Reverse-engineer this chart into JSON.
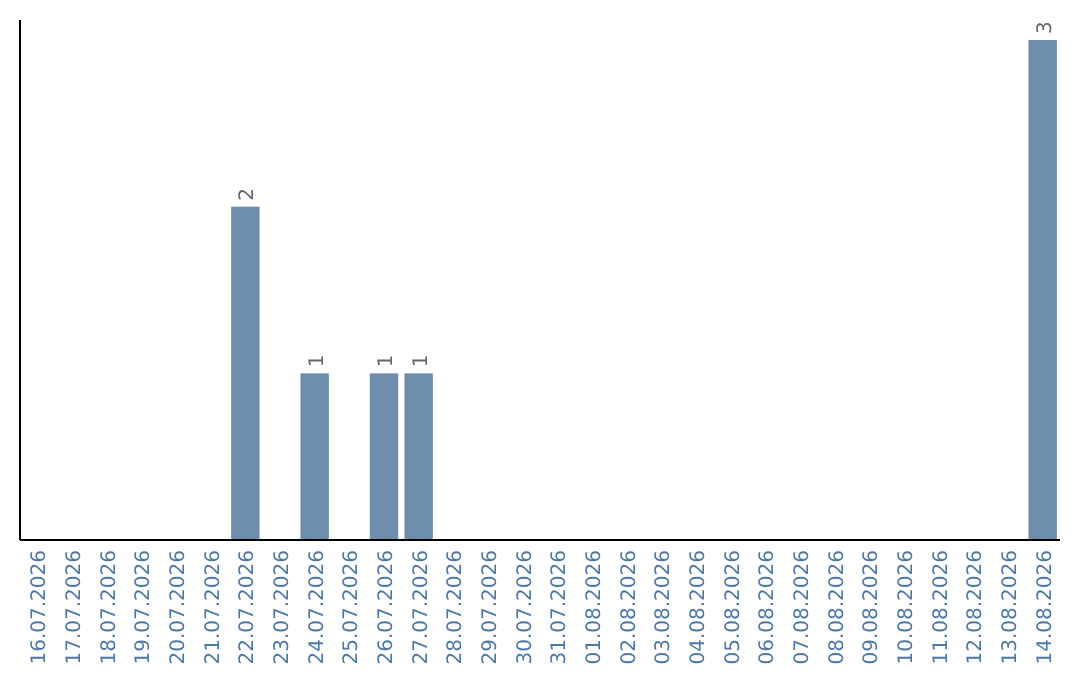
{
  "chart_data": {
    "type": "bar",
    "categories": [
      "16.07.2026",
      "17.07.2026",
      "18.07.2026",
      "19.07.2026",
      "20.07.2026",
      "21.07.2026",
      "22.07.2026",
      "23.07.2026",
      "24.07.2026",
      "25.07.2026",
      "26.07.2026",
      "27.07.2026",
      "28.07.2026",
      "29.07.2026",
      "30.07.2026",
      "31.07.2026",
      "01.08.2026",
      "02.08.2026",
      "03.08.2026",
      "04.08.2026",
      "05.08.2026",
      "06.08.2026",
      "07.08.2026",
      "08.08.2026",
      "09.08.2026",
      "10.08.2026",
      "11.08.2026",
      "12.08.2026",
      "13.08.2026",
      "14.08.2026"
    ],
    "values": [
      0,
      0,
      0,
      0,
      0,
      0,
      2,
      0,
      1,
      0,
      1,
      1,
      0,
      0,
      0,
      0,
      0,
      0,
      0,
      0,
      0,
      0,
      0,
      0,
      0,
      0,
      0,
      0,
      0,
      3
    ],
    "value_labels": [
      null,
      null,
      null,
      null,
      null,
      null,
      "2",
      null,
      "1",
      null,
      "1",
      "1",
      null,
      null,
      null,
      null,
      null,
      null,
      null,
      null,
      null,
      null,
      null,
      null,
      null,
      null,
      null,
      null,
      null,
      "3"
    ],
    "color": "#6f8ead",
    "grid": false
  }
}
